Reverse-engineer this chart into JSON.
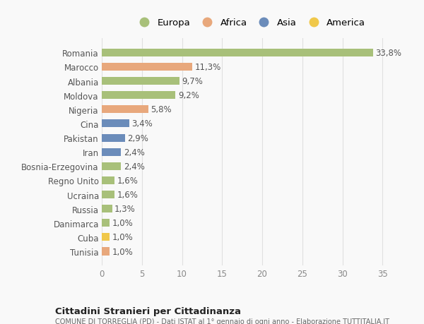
{
  "countries": [
    "Romania",
    "Marocco",
    "Albania",
    "Moldova",
    "Nigeria",
    "Cina",
    "Pakistan",
    "Iran",
    "Bosnia-Erzegovina",
    "Regno Unito",
    "Ucraina",
    "Russia",
    "Danimarca",
    "Cuba",
    "Tunisia"
  ],
  "values": [
    33.8,
    11.3,
    9.7,
    9.2,
    5.8,
    3.4,
    2.9,
    2.4,
    2.4,
    1.6,
    1.6,
    1.3,
    1.0,
    1.0,
    1.0
  ],
  "labels": [
    "33,8%",
    "11,3%",
    "9,7%",
    "9,2%",
    "5,8%",
    "3,4%",
    "2,9%",
    "2,4%",
    "2,4%",
    "1,6%",
    "1,6%",
    "1,3%",
    "1,0%",
    "1,0%",
    "1,0%"
  ],
  "continents": [
    "Europa",
    "Africa",
    "Europa",
    "Europa",
    "Africa",
    "Asia",
    "Asia",
    "Asia",
    "Europa",
    "Europa",
    "Europa",
    "Europa",
    "Europa",
    "America",
    "Africa"
  ],
  "continent_colors": {
    "Europa": "#a8c07a",
    "Africa": "#e8a87c",
    "Asia": "#6b8cba",
    "America": "#f0c84a"
  },
  "legend_order": [
    "Europa",
    "Africa",
    "Asia",
    "America"
  ],
  "title1": "Cittadini Stranieri per Cittadinanza",
  "title2": "COMUNE DI TORREGLIA (PD) - Dati ISTAT al 1° gennaio di ogni anno - Elaborazione TUTTITALIA.IT",
  "xlim": [
    0,
    37
  ],
  "xticks": [
    0,
    5,
    10,
    15,
    20,
    25,
    30,
    35
  ],
  "background_color": "#f9f9f9",
  "bar_height": 0.55,
  "grid_color": "#e0e0e0",
  "label_fontsize": 8.5,
  "tick_fontsize": 8.5,
  "legend_fontsize": 9.5
}
